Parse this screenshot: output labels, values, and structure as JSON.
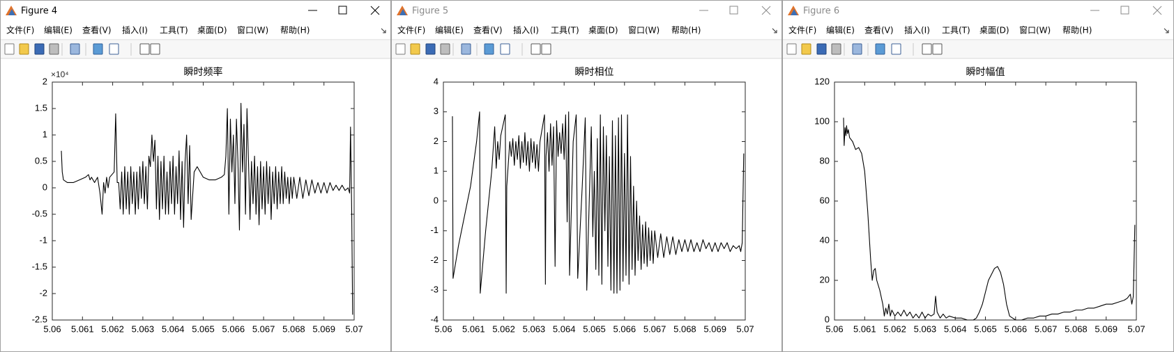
{
  "windows": [
    {
      "title": "Figure 4"
    },
    {
      "title": "Figure 5"
    },
    {
      "title": "Figure 6"
    }
  ],
  "menu": [
    "文件(F)",
    "编辑(E)",
    "查看(V)",
    "插入(I)",
    "工具(T)",
    "桌面(D)",
    "窗口(W)",
    "帮助(H)"
  ],
  "chart_data": [
    {
      "type": "line",
      "title": "瞬时频率",
      "y_multiplier": "×10⁴",
      "color": "#000000",
      "xlim": [
        5.06,
        5.07
      ],
      "ylim": [
        -2.5,
        2
      ],
      "xticks": [
        5.06,
        5.061,
        5.062,
        5.063,
        5.064,
        5.065,
        5.066,
        5.067,
        5.068,
        5.069,
        5.07
      ],
      "yticks": [
        -2.5,
        -2,
        -1.5,
        -1,
        -0.5,
        0,
        0.5,
        1,
        1.5,
        2
      ],
      "x": [
        5.0603,
        5.06033,
        5.06037,
        5.0605,
        5.0607,
        5.0609,
        5.0611,
        5.0612,
        5.06125,
        5.0613,
        5.0614,
        5.0615,
        5.06158,
        5.06165,
        5.0617,
        5.06175,
        5.0618,
        5.06185,
        5.0619,
        5.06205,
        5.0621,
        5.06215,
        5.0622,
        5.06225,
        5.0623,
        5.06235,
        5.0624,
        5.06245,
        5.0625,
        5.06255,
        5.0626,
        5.06265,
        5.0627,
        5.06275,
        5.0628,
        5.06285,
        5.0629,
        5.06295,
        5.063,
        5.06305,
        5.0631,
        5.06315,
        5.0632,
        5.06325,
        5.0633,
        5.06335,
        5.0634,
        5.06345,
        5.0635,
        5.06355,
        5.0636,
        5.06365,
        5.0637,
        5.06375,
        5.0638,
        5.06385,
        5.0639,
        5.06395,
        5.064,
        5.06405,
        5.0641,
        5.06415,
        5.0642,
        5.06425,
        5.0643,
        5.06435,
        5.0644,
        5.06445,
        5.0645,
        5.06455,
        5.0646,
        5.0647,
        5.0648,
        5.065,
        5.0652,
        5.0654,
        5.0656,
        5.0657,
        5.06575,
        5.0658,
        5.06585,
        5.0659,
        5.06595,
        5.066,
        5.06605,
        5.0661,
        5.06615,
        5.0662,
        5.06625,
        5.0663,
        5.06635,
        5.0664,
        5.06645,
        5.0665,
        5.06655,
        5.0666,
        5.06665,
        5.0667,
        5.06675,
        5.0668,
        5.06685,
        5.0669,
        5.06695,
        5.067,
        5.06705,
        5.0671,
        5.06715,
        5.0672,
        5.06725,
        5.0673,
        5.06735,
        5.0674,
        5.06745,
        5.0675,
        5.06755,
        5.0676,
        5.06765,
        5.0677,
        5.06775,
        5.0678,
        5.06785,
        5.0679,
        5.06795,
        5.068,
        5.0681,
        5.0682,
        5.0683,
        5.0684,
        5.0685,
        5.0686,
        5.0687,
        5.0688,
        5.0689,
        5.069,
        5.0691,
        5.0692,
        5.0693,
        5.0694,
        5.0695,
        5.0696,
        5.0697,
        5.0698,
        5.06985,
        5.06988,
        5.06992,
        5.06995
      ],
      "values": [
        0.7,
        0.3,
        0.15,
        0.1,
        0.1,
        0.15,
        0.2,
        0.25,
        0.15,
        0.2,
        0.1,
        0.2,
        -0.1,
        -0.5,
        0.1,
        -0.1,
        0.2,
        0.0,
        0.2,
        0.3,
        1.4,
        0.1,
        0.1,
        -0.4,
        0.3,
        -0.5,
        0.4,
        -0.4,
        0.3,
        -0.5,
        0.4,
        -0.3,
        0.3,
        -0.5,
        0.3,
        -0.4,
        0.4,
        -0.2,
        0.5,
        -0.3,
        0.4,
        -0.4,
        0.6,
        0.4,
        1.0,
        0.5,
        0.9,
        -0.4,
        0.6,
        -0.6,
        0.5,
        -0.4,
        0.6,
        -0.5,
        0.3,
        -0.5,
        0.5,
        -0.3,
        0.6,
        -0.5,
        0.4,
        -0.3,
        0.7,
        -0.6,
        0.5,
        -0.75,
        0.5,
        1.0,
        -0.3,
        0.8,
        -0.6,
        0.3,
        0.4,
        0.2,
        0.15,
        0.15,
        0.2,
        0.25,
        0.6,
        1.5,
        -0.5,
        1.3,
        0.3,
        1.0,
        -0.3,
        1.3,
        0.5,
        -0.8,
        1.6,
        0.3,
        1.2,
        -0.5,
        1.5,
        0.5,
        -0.6,
        0.5,
        -0.3,
        0.6,
        -0.5,
        0.4,
        -0.7,
        0.5,
        -0.4,
        0.4,
        -0.5,
        0.5,
        -0.3,
        0.4,
        -0.6,
        0.3,
        -0.3,
        0.4,
        -0.4,
        0.3,
        -0.3,
        0.4,
        -0.3,
        0.3,
        -0.2,
        0.2,
        -0.3,
        0.2,
        -0.2,
        0.2,
        -0.2,
        0.2,
        -0.2,
        0.15,
        -0.15,
        0.15,
        -0.1,
        0.1,
        -0.1,
        0.1,
        -0.1,
        0.1,
        -0.05,
        0.05,
        -0.05,
        0.05,
        -0.05,
        0.0,
        -0.1,
        1.15,
        -0.5,
        -2.4
      ]
    },
    {
      "type": "line",
      "title": "瞬时相位",
      "color": "#000000",
      "xlim": [
        5.06,
        5.07
      ],
      "ylim": [
        -4,
        4
      ],
      "xticks": [
        5.06,
        5.061,
        5.062,
        5.063,
        5.064,
        5.065,
        5.066,
        5.067,
        5.068,
        5.069,
        5.07
      ],
      "yticks": [
        -4,
        -3,
        -2,
        -1,
        0,
        1,
        2,
        3,
        4
      ],
      "x": [
        5.0603,
        5.06032,
        5.0605,
        5.0607,
        5.0609,
        5.0611,
        5.0612,
        5.06122,
        5.0614,
        5.0616,
        5.0617,
        5.06175,
        5.0618,
        5.06185,
        5.0619,
        5.06205,
        5.06208,
        5.0621,
        5.0622,
        5.06225,
        5.0623,
        5.06235,
        5.0624,
        5.06245,
        5.0625,
        5.06255,
        5.0626,
        5.06265,
        5.0627,
        5.06275,
        5.0628,
        5.06285,
        5.0629,
        5.06295,
        5.063,
        5.06305,
        5.0631,
        5.06315,
        5.0632,
        5.06335,
        5.06338,
        5.0634,
        5.06345,
        5.0635,
        5.06355,
        5.0636,
        5.06365,
        5.0637,
        5.06375,
        5.0638,
        5.06385,
        5.0639,
        5.06395,
        5.064,
        5.06405,
        5.0641,
        5.06415,
        5.06418,
        5.0643,
        5.0644,
        5.06445,
        5.0646,
        5.0647,
        5.06475,
        5.0649,
        5.06495,
        5.065,
        5.06505,
        5.0651,
        5.06515,
        5.0652,
        5.06525,
        5.0653,
        5.06535,
        5.0654,
        5.06545,
        5.0655,
        5.06555,
        5.0656,
        5.06565,
        5.0657,
        5.06575,
        5.0658,
        5.06585,
        5.0659,
        5.06595,
        5.066,
        5.06605,
        5.0661,
        5.06615,
        5.0662,
        5.06625,
        5.0663,
        5.06635,
        5.0664,
        5.06645,
        5.0665,
        5.06655,
        5.0666,
        5.06665,
        5.0667,
        5.06675,
        5.0668,
        5.06685,
        5.0669,
        5.06695,
        5.067,
        5.0671,
        5.0672,
        5.0673,
        5.0674,
        5.0675,
        5.0676,
        5.0677,
        5.0678,
        5.0679,
        5.068,
        5.0681,
        5.0682,
        5.0683,
        5.0684,
        5.0685,
        5.0686,
        5.0687,
        5.0688,
        5.0689,
        5.069,
        5.0691,
        5.0692,
        5.0693,
        5.0694,
        5.0695,
        5.0696,
        5.0697,
        5.0698,
        5.06985,
        5.0699,
        5.06995
      ],
      "values": [
        2.85,
        -2.6,
        -1.5,
        -0.5,
        0.5,
        2.0,
        3.0,
        -3.1,
        -1.0,
        1.0,
        2.5,
        1.1,
        2.0,
        1.4,
        2.2,
        2.9,
        -3.1,
        0.5,
        2.0,
        1.5,
        2.1,
        1.2,
        2.0,
        1.4,
        2.2,
        1.1,
        2.0,
        1.3,
        2.3,
        1.2,
        2.0,
        1.0,
        2.1,
        1.3,
        2.0,
        1.1,
        1.9,
        1.0,
        2.0,
        2.9,
        -2.8,
        1.5,
        2.3,
        1.0,
        2.6,
        1.2,
        2.5,
        -2.2,
        2.7,
        1.5,
        2.3,
        1.6,
        2.6,
        1.4,
        2.9,
        -0.7,
        3.0,
        -2.5,
        2.0,
        2.9,
        -2.6,
        0.5,
        2.8,
        -3.0,
        2.5,
        -1.2,
        1.0,
        -2.3,
        2.1,
        -2.5,
        2.9,
        -2.8,
        2.5,
        -1.0,
        2.2,
        -2.2,
        1.5,
        -3.0,
        2.7,
        -3.1,
        2.2,
        -3.1,
        2.8,
        -3.0,
        2.9,
        -2.7,
        1.6,
        -2.5,
        2.9,
        -2.8,
        1.5,
        -2.3,
        0.5,
        -2.5,
        0.0,
        -2.0,
        -0.5,
        -2.3,
        -0.8,
        -2.1,
        -0.7,
        -2.2,
        -0.9,
        -2.0,
        -1.0,
        -2.1,
        -1.0,
        -1.9,
        -1.1,
        -1.9,
        -1.2,
        -1.8,
        -1.2,
        -1.8,
        -1.3,
        -1.7,
        -1.3,
        -1.7,
        -1.3,
        -1.7,
        -1.4,
        -1.7,
        -1.3,
        -1.6,
        -1.4,
        -1.7,
        -1.4,
        -1.7,
        -1.4,
        -1.6,
        -1.4,
        -1.7,
        -1.5,
        -1.6,
        -1.5,
        -1.7,
        -1.4,
        1.6
      ]
    },
    {
      "type": "line",
      "title": "瞬时幅值",
      "color": "#000000",
      "xlim": [
        5.06,
        5.07
      ],
      "ylim": [
        0,
        120
      ],
      "xticks": [
        5.06,
        5.061,
        5.062,
        5.063,
        5.064,
        5.065,
        5.066,
        5.067,
        5.068,
        5.069,
        5.07
      ],
      "yticks": [
        0,
        20,
        40,
        60,
        80,
        100,
        120
      ],
      "x": [
        5.0603,
        5.06032,
        5.06035,
        5.06038,
        5.0604,
        5.06043,
        5.06046,
        5.0605,
        5.0606,
        5.0607,
        5.0608,
        5.0609,
        5.061,
        5.0611,
        5.0612,
        5.06125,
        5.0613,
        5.06135,
        5.0614,
        5.0615,
        5.0616,
        5.06165,
        5.0617,
        5.06175,
        5.0618,
        5.06185,
        5.0619,
        5.062,
        5.0621,
        5.0622,
        5.0623,
        5.0624,
        5.0625,
        5.0626,
        5.0627,
        5.0628,
        5.0629,
        5.063,
        5.0631,
        5.0632,
        5.0633,
        5.06335,
        5.0634,
        5.0635,
        5.0636,
        5.0637,
        5.0638,
        5.064,
        5.0642,
        5.0644,
        5.0646,
        5.0647,
        5.0648,
        5.0649,
        5.065,
        5.0651,
        5.0652,
        5.0653,
        5.0654,
        5.0655,
        5.0656,
        5.0657,
        5.0658,
        5.0659,
        5.066,
        5.0662,
        5.0664,
        5.0666,
        5.0668,
        5.067,
        5.0672,
        5.0674,
        5.0676,
        5.0678,
        5.068,
        5.0682,
        5.0684,
        5.0686,
        5.0688,
        5.069,
        5.0692,
        5.0694,
        5.0696,
        5.0697,
        5.0698,
        5.06985,
        5.0699,
        5.06995
      ],
      "values": [
        102,
        88,
        97,
        93,
        98,
        94,
        96,
        92,
        90,
        86,
        87,
        84,
        75,
        55,
        30,
        20,
        25,
        26,
        20,
        15,
        8,
        2,
        6,
        3,
        8,
        2,
        5,
        2,
        4,
        2,
        5,
        2,
        4,
        1,
        3,
        1,
        4,
        1,
        3,
        2,
        3,
        12,
        4,
        1,
        3,
        1,
        2,
        1,
        1,
        0,
        0,
        1,
        4,
        8,
        14,
        20,
        23,
        26,
        27,
        24,
        18,
        8,
        2,
        1,
        0,
        0,
        1,
        1,
        2,
        2,
        3,
        3,
        4,
        4,
        5,
        5,
        6,
        6,
        7,
        8,
        8,
        9,
        10,
        11,
        13,
        8,
        12,
        48
      ]
    }
  ]
}
